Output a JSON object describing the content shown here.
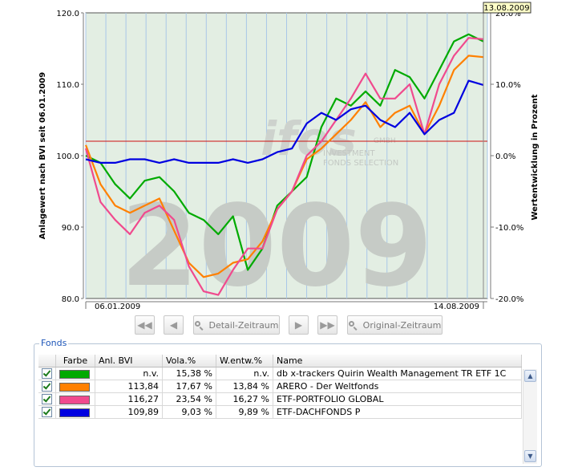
{
  "chart_data": {
    "type": "line",
    "y_left": {
      "label": "Anlagewert nach BVI seit 06.01.2009",
      "range": [
        80,
        120
      ],
      "ticks": [
        "120.0",
        "110.0",
        "100.0",
        "90.0",
        "80.0"
      ]
    },
    "y_right": {
      "label": "Wertentwicklung in Prozent",
      "ticks": [
        "20.0%",
        "10.0%",
        "0.0%",
        "-10.0%",
        "-20.0%"
      ]
    },
    "x_start_label": "06.01.2009",
    "x_end_label": "14.08.2009",
    "cursor_date_label": "13.08.2009",
    "watermark": {
      "year": "2009",
      "logo": "ifos",
      "gmbh": "GMBH",
      "line1": "INVESTMENT",
      "line2": "FONDS SELECTION"
    },
    "series": [
      {
        "name": "db x-trackers Quirin Wealth Management TR ETF 1C",
        "color": "#00aa00",
        "values": [
          100.0,
          99.0,
          96.0,
          94.0,
          96.5,
          97.0,
          95.0,
          92.0,
          91.0,
          89.0,
          91.5,
          84.0,
          87.0,
          93.0,
          95.0,
          97.0,
          104.0,
          108.0,
          107.0,
          109.0,
          107.0,
          112.0,
          111.0,
          108.0,
          112.0,
          116.0,
          117.0,
          116.0
        ]
      },
      {
        "name": "ARERO - Der Weltfonds",
        "color": "#ff8000",
        "values": [
          101.5,
          96.0,
          93.0,
          92.0,
          93.0,
          94.0,
          89.5,
          85.0,
          83.0,
          83.5,
          85.0,
          85.5,
          88.0,
          92.5,
          95.0,
          99.5,
          101.0,
          103.0,
          105.0,
          107.5,
          104.0,
          106.0,
          107.0,
          103.0,
          107.0,
          112.0,
          114.0,
          113.8
        ]
      },
      {
        "name": "ETF-PORTFOLIO GLOBAL",
        "color": "#f04a8e",
        "values": [
          101.0,
          93.5,
          91.0,
          89.0,
          92.0,
          93.0,
          91.0,
          84.5,
          81.0,
          80.5,
          84.0,
          87.0,
          87.0,
          92.5,
          95.0,
          100.0,
          102.0,
          105.0,
          108.0,
          111.5,
          108.0,
          108.0,
          110.0,
          103.0,
          110.0,
          114.0,
          116.5,
          116.3
        ]
      },
      {
        "name": "ETF-DACHFONDS P",
        "color": "#0000e0",
        "values": [
          99.5,
          99.0,
          99.0,
          99.5,
          99.5,
          99.0,
          99.5,
          99.0,
          99.0,
          99.0,
          99.5,
          99.0,
          99.5,
          100.5,
          101.0,
          104.5,
          106.0,
          105.0,
          106.5,
          107.0,
          105.0,
          104.0,
          106.0,
          103.0,
          105.0,
          106.0,
          110.5,
          109.9
        ]
      }
    ]
  },
  "nav": {
    "detail_label": "Detail-Zeitraum",
    "original_label": "Original-Zeitraum"
  },
  "fonds": {
    "legend": "Fonds",
    "headers": [
      "Farbe",
      "Anl. BVI",
      "Vola.%",
      "W.entw.%",
      "Name"
    ],
    "rows": [
      {
        "color": "#00aa00",
        "anl_bvi": "n.v.",
        "vola": "15,38 %",
        "wentw": "n.v.",
        "name": "db x-trackers Quirin Wealth Management TR ETF 1C"
      },
      {
        "color": "#ff8000",
        "anl_bvi": "113,84",
        "vola": "17,67 %",
        "wentw": "13,84 %",
        "name": "ARERO - Der Weltfonds"
      },
      {
        "color": "#f04a8e",
        "anl_bvi": "116,27",
        "vola": "23,54 %",
        "wentw": "16,27 %",
        "name": "ETF-PORTFOLIO GLOBAL"
      },
      {
        "color": "#0000e0",
        "anl_bvi": "109,89",
        "vola": "9,03 %",
        "wentw": "9,89 %",
        "name": "ETF-DACHFONDS P"
      }
    ]
  }
}
